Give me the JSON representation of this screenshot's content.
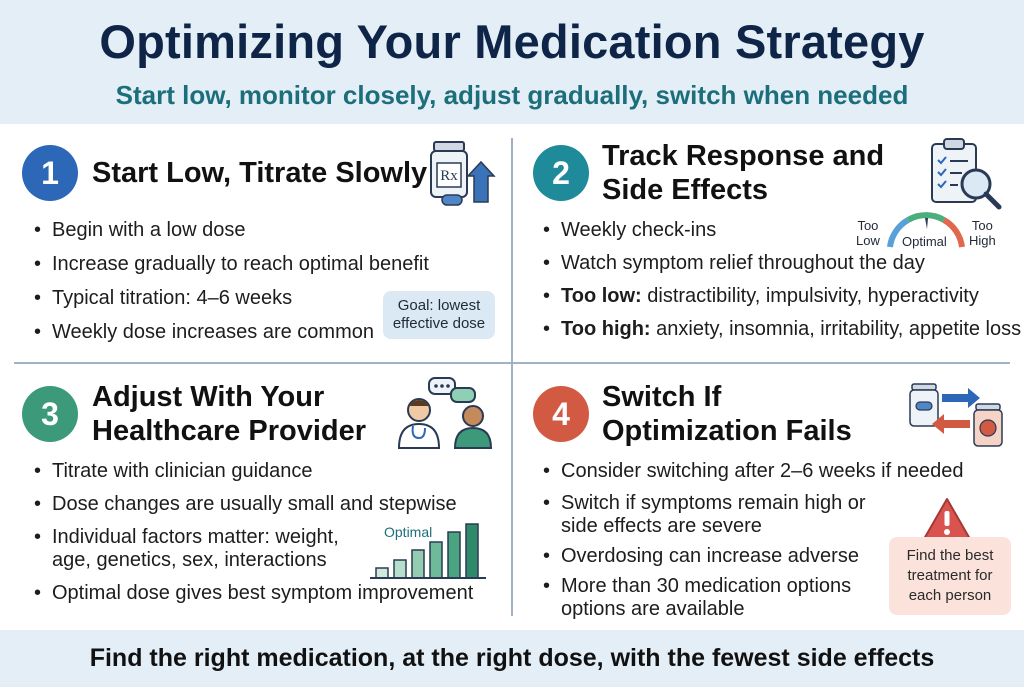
{
  "header": {
    "title": "Optimizing Your Medication Strategy",
    "subtitle": "Start low, monitor closely, adjust gradually, switch when needed"
  },
  "quadrants": [
    {
      "number": "1",
      "title": [
        "Start Low, Titrate Slowly"
      ],
      "icon": "pill-bottle-arrow-icon",
      "bullets": [
        "Begin with a low dose",
        "Increase gradually to reach optimal benefit",
        "Typical titration: 4–6 weeks",
        "Weekly dose increases are common"
      ],
      "callout": [
        "Goal: lowest",
        "effective dose"
      ]
    },
    {
      "number": "2",
      "title": [
        "Track Response and",
        "Side Effects"
      ],
      "icon": "clipboard-magnifier-icon",
      "bullets": [
        {
          "lead": "",
          "text": "Weekly check-ins"
        },
        {
          "lead": "",
          "text": "Watch symptom relief throughout the day"
        },
        {
          "lead": "Too low:",
          "text": " distractibility, impulsivity, hyperactivity"
        },
        {
          "lead": "Too high:",
          "text": " anxiety, insomnia, irritability, appetite loss"
        }
      ],
      "gauge": {
        "left": [
          "Too",
          "Low"
        ],
        "middle": "Optimal",
        "right": [
          "Too",
          "High"
        ]
      }
    },
    {
      "number": "3",
      "title": [
        "Adjust With Your",
        "Healthcare Provider"
      ],
      "icon": "doctor-patient-chat-icon",
      "bullets": [
        [
          "Titrate with clinician guidance"
        ],
        [
          "Dose changes are usually small and stepwise"
        ],
        [
          "Individual factors matter: weight,",
          "age, genetics, sex, interactions"
        ],
        [
          "Optimal dose gives best symptom improvement"
        ]
      ],
      "chart_label": "Optimal"
    },
    {
      "number": "4",
      "title": [
        "Switch If",
        "Optimization Fails"
      ],
      "icon": "swap-medication-icon",
      "bullets": [
        [
          "Consider switching after 2–6 weeks if needed"
        ],
        [
          "Switch if symptoms remain high or",
          "side effects are severe"
        ],
        [
          "Overdosing can increase adverse"
        ],
        [
          "More than 30 medication options",
          "options are available"
        ]
      ],
      "callout": [
        "Find the best",
        "treatment for",
        "each person"
      ]
    }
  ],
  "footer": {
    "text": "Find the right medication, at the right dose, with the fewest side effects"
  },
  "colors": {
    "navy": "#0f2547",
    "teal": "#1c6f7a",
    "blue": "#2d67b8",
    "cyan": "#1f8a99",
    "green": "#3c9a7b",
    "red": "#d25a43"
  }
}
